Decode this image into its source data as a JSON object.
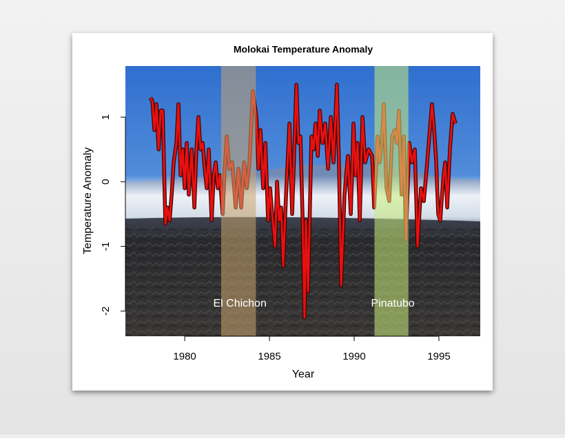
{
  "chart_data": {
    "type": "line",
    "title": "Molokai Temperature Anomaly",
    "x_label": "Year",
    "y_label": "Temperature Anomaly",
    "xlim": [
      1976.5,
      1997.44
    ],
    "ylim": [
      -2.39,
      1.79
    ],
    "xticks": [
      1980,
      1985,
      1990,
      1995
    ],
    "yticks": [
      -2,
      -1,
      0,
      1
    ],
    "shaded_periods": [
      {
        "label": "El Chichon",
        "start": 1982.15,
        "end": 1984.2,
        "color": "#c9a46e"
      },
      {
        "label": "Pinatubo",
        "start": 1991.2,
        "end": 1993.2,
        "color": "#c8ec7a"
      }
    ],
    "series": [
      {
        "name": "Temperature Anomaly",
        "color": "#e81010",
        "x": [
          1977.97,
          1978.09,
          1978.21,
          1978.33,
          1978.46,
          1978.58,
          1978.7,
          1978.86,
          1978.98,
          1979.11,
          1979.23,
          1979.35,
          1979.51,
          1979.63,
          1979.76,
          1979.88,
          1980.0,
          1980.12,
          1980.24,
          1980.41,
          1980.57,
          1980.69,
          1980.81,
          1980.93,
          1981.06,
          1981.18,
          1981.3,
          1981.42,
          1981.59,
          1981.71,
          1981.83,
          1981.95,
          1982.07,
          1982.24,
          1982.36,
          1982.48,
          1982.64,
          1982.8,
          1983.01,
          1983.17,
          1983.33,
          1983.5,
          1983.66,
          1983.82,
          1984.02,
          1984.23,
          1984.35,
          1984.47,
          1984.63,
          1984.76,
          1984.92,
          1985.04,
          1985.16,
          1985.33,
          1985.45,
          1985.57,
          1985.69,
          1985.81,
          1985.98,
          1986.18,
          1986.34,
          1986.59,
          1986.71,
          1986.83,
          1986.95,
          1987.07,
          1987.15,
          1987.28,
          1987.48,
          1987.6,
          1987.72,
          1987.85,
          1987.97,
          1988.13,
          1988.29,
          1988.46,
          1988.62,
          1988.78,
          1988.98,
          1989.11,
          1989.23,
          1989.43,
          1989.63,
          1989.8,
          1989.96,
          1990.08,
          1990.2,
          1990.33,
          1990.49,
          1990.65,
          1990.85,
          1991.06,
          1991.18,
          1991.38,
          1991.5,
          1991.63,
          1991.75,
          1991.91,
          1992.07,
          1992.24,
          1992.4,
          1992.52,
          1992.64,
          1992.8,
          1992.93,
          1993.05,
          1993.25,
          1993.41,
          1993.58,
          1993.74,
          1993.94,
          1994.11,
          1994.31,
          1994.59,
          1994.72,
          1994.84,
          1994.96,
          1995.08,
          1995.24,
          1995.37,
          1995.49,
          1995.65,
          1995.81,
          1995.98
        ],
        "values": [
          1.3,
          1.25,
          0.8,
          1.2,
          0.5,
          1.1,
          1.1,
          -0.65,
          -0.4,
          -0.6,
          -0.2,
          0.3,
          0.6,
          1.2,
          0.1,
          0.5,
          -0.1,
          0.6,
          -0.2,
          0.5,
          -0.4,
          0.5,
          1.0,
          0.5,
          0.6,
          0.2,
          -0.1,
          0.5,
          -0.6,
          0.1,
          0.3,
          -0.1,
          0.1,
          -0.5,
          0.2,
          0.7,
          0.2,
          0.3,
          -0.4,
          0.2,
          -0.4,
          0.3,
          -0.1,
          0.3,
          1.4,
          1.0,
          0.2,
          0.8,
          -0.1,
          0.6,
          -0.6,
          -0.1,
          -0.5,
          -1.0,
          0.0,
          -0.6,
          -0.4,
          -1.3,
          -0.2,
          0.9,
          -0.5,
          1.5,
          0.6,
          0.7,
          -0.5,
          -2.1,
          -0.6,
          -1.7,
          0.7,
          0.5,
          0.9,
          0.4,
          1.1,
          0.6,
          0.9,
          0.2,
          1.0,
          0.3,
          1.5,
          0.2,
          -1.6,
          -0.2,
          0.4,
          -0.5,
          0.9,
          0.1,
          0.6,
          -0.6,
          1.0,
          0.3,
          0.5,
          0.4,
          -0.4,
          0.7,
          0.3,
          0.6,
          1.2,
          -0.1,
          -0.3,
          0.7,
          0.8,
          0.6,
          1.1,
          -0.2,
          0.7,
          -0.9,
          0.6,
          0.3,
          0.5,
          -1.0,
          -0.1,
          -0.3,
          0.3,
          1.2,
          0.8,
          0.3,
          -0.5,
          -0.6,
          0.0,
          0.3,
          -0.4,
          0.5,
          1.05,
          0.9
        ]
      }
    ]
  }
}
